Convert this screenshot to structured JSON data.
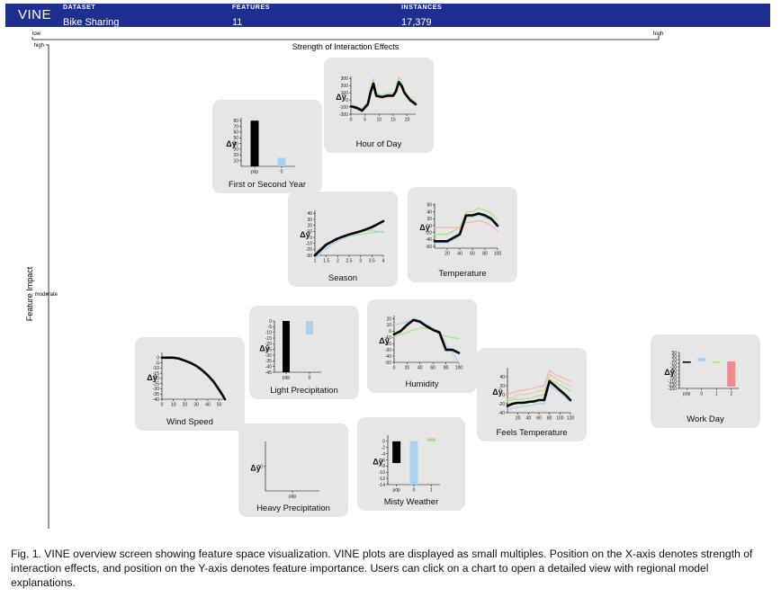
{
  "header": {
    "app_name": "VINE",
    "dataset_label": "DATASET",
    "dataset_value": "Bike Sharing",
    "features_label": "FEATURES",
    "features_value": "11",
    "instances_label": "INSTANCES",
    "instances_value": "17,379"
  },
  "x_axis": {
    "title": "Strength of Interaction Effects",
    "low_label": "low",
    "high_label": "high"
  },
  "y_axis": {
    "title": "Feature Impact",
    "high_label": "high",
    "moderate_label": "moderate"
  },
  "caption": "Fig. 1. VINE overview screen showing feature space visualization. VINE plots are displayed as small multiples. Position on the X-axis denotes strength of interaction effects, and position on the Y-axis denotes feature importance. Users can click on a chart to open a detailed view with regional model explanations.",
  "colors": {
    "header_bg": "#1f2f8f",
    "card_bg": "#e6e6e5",
    "pdp": "#000000",
    "cluster_green": "#a8e08a",
    "cluster_blue": "#a9d2ee",
    "cluster_pink": "#f6b1b6",
    "cluster_red": "#f28a92",
    "cluster_tan": "#e9c8a8"
  },
  "delta_y_label": "Δŷ",
  "chart_data": [
    {
      "id": "hour",
      "title": "Hour of Day",
      "type": "line",
      "x": [
        0,
        2,
        4,
        6,
        7,
        8,
        9,
        11,
        13,
        15,
        16,
        17,
        18,
        19,
        21,
        23
      ],
      "xticks": [
        0,
        5,
        10,
        15,
        20
      ],
      "xlim": [
        0,
        23
      ],
      "ylim": [
        -200,
        330
      ],
      "yticks": [
        -200,
        -100,
        0,
        100,
        200,
        300
      ],
      "series": [
        {
          "role": "pdp",
          "values": [
            -90,
            -110,
            -150,
            -60,
            110,
            230,
            60,
            40,
            60,
            60,
            120,
            250,
            200,
            100,
            0,
            -60
          ]
        },
        {
          "role": "green",
          "values": [
            -70,
            -90,
            -130,
            -40,
            150,
            300,
            90,
            70,
            90,
            90,
            170,
            320,
            250,
            130,
            20,
            -40
          ]
        },
        {
          "role": "pink",
          "values": [
            -100,
            -120,
            -160,
            -80,
            80,
            200,
            40,
            30,
            40,
            50,
            100,
            220,
            170,
            80,
            -10,
            -70
          ]
        },
        {
          "role": "blue",
          "values": [
            -110,
            -130,
            -170,
            -70,
            90,
            190,
            50,
            40,
            50,
            60,
            110,
            230,
            180,
            90,
            -20,
            -80
          ]
        }
      ]
    },
    {
      "id": "year",
      "title": "First or Second Year",
      "type": "bar",
      "categories": [
        "pdp",
        "0"
      ],
      "values": [
        80,
        15
      ],
      "ylim": [
        0,
        85
      ],
      "yticks": [
        10,
        20,
        30,
        40,
        50,
        60,
        70,
        80
      ]
    },
    {
      "id": "season",
      "title": "Season",
      "type": "line",
      "x": [
        1.0,
        1.5,
        2.0,
        2.5,
        3.0,
        3.5,
        4.0
      ],
      "xticks": [
        1.0,
        1.5,
        2.0,
        2.5,
        3.0,
        3.5,
        4.0
      ],
      "xlim": [
        1.0,
        4.0
      ],
      "ylim": [
        -30,
        45
      ],
      "yticks": [
        -30,
        -20,
        -10,
        0,
        10,
        20,
        30,
        40
      ],
      "series": [
        {
          "role": "pdp",
          "values": [
            -30,
            -12,
            -2,
            5,
            10,
            17,
            27
          ]
        },
        {
          "role": "green",
          "values": [
            -25,
            -10,
            -2,
            2,
            5,
            8,
            10
          ]
        },
        {
          "role": "blue",
          "values": [
            -35,
            -18,
            -6,
            2,
            10,
            12,
            8
          ]
        }
      ]
    },
    {
      "id": "temperature",
      "title": "Temperature",
      "type": "line",
      "x": [
        0,
        10,
        20,
        30,
        40,
        50,
        60,
        70,
        80,
        90,
        100
      ],
      "xticks": [
        20,
        40,
        60,
        80,
        100
      ],
      "xlim": [
        0,
        100
      ],
      "ylim": [
        -65,
        65
      ],
      "yticks": [
        -60,
        -40,
        -20,
        0,
        20,
        40,
        60
      ],
      "series": [
        {
          "role": "pdp",
          "values": [
            -45,
            -45,
            -45,
            -35,
            -25,
            30,
            30,
            35,
            30,
            20,
            0
          ]
        },
        {
          "role": "green",
          "values": [
            -25,
            -25,
            -25,
            -15,
            -5,
            40,
            40,
            50,
            45,
            35,
            15
          ]
        },
        {
          "role": "pink",
          "values": [
            -5,
            -5,
            -5,
            -5,
            -5,
            10,
            10,
            15,
            10,
            0,
            -15
          ]
        },
        {
          "role": "blue",
          "values": [
            -50,
            -50,
            -50,
            -40,
            -30,
            25,
            25,
            30,
            25,
            15,
            -5
          ]
        }
      ]
    },
    {
      "id": "wind",
      "title": "Wind Speed",
      "type": "line",
      "x": [
        0,
        5,
        10,
        15,
        20,
        25,
        30,
        35,
        40,
        45,
        50,
        55
      ],
      "xticks": [
        0,
        10,
        20,
        30,
        40,
        50
      ],
      "xlim": [
        0,
        55
      ],
      "ylim": [
        -40,
        5
      ],
      "yticks": [
        0,
        -5,
        -10,
        -15,
        -20,
        -25,
        -30,
        -35,
        -40
      ],
      "series": [
        {
          "role": "pdp",
          "values": [
            0,
            0,
            0,
            -1,
            -3,
            -5,
            -8,
            -12,
            -17,
            -23,
            -31,
            -40
          ]
        }
      ]
    },
    {
      "id": "light",
      "title": "Light Precipitation",
      "type": "bar",
      "categories": [
        "pdp",
        "0"
      ],
      "values": [
        -45,
        -12
      ],
      "ylim": [
        -45,
        0
      ],
      "yticks": [
        0,
        -5,
        -10,
        -15,
        -20,
        -25,
        -30,
        -35,
        -40,
        -45
      ]
    },
    {
      "id": "humidity",
      "title": "Humidity",
      "type": "line",
      "x": [
        0,
        10,
        20,
        30,
        40,
        50,
        60,
        70,
        80,
        90,
        100
      ],
      "xticks": [
        0,
        20,
        40,
        60,
        80,
        100
      ],
      "xlim": [
        0,
        100
      ],
      "ylim": [
        -50,
        25
      ],
      "yticks": [
        -50,
        -40,
        -30,
        -20,
        -10,
        0,
        10,
        20
      ],
      "series": [
        {
          "role": "pdp",
          "values": [
            -5,
            0,
            10,
            18,
            15,
            8,
            2,
            -2,
            -30,
            -30,
            -35
          ]
        },
        {
          "role": "green",
          "values": [
            -10,
            -5,
            -2,
            2,
            5,
            5,
            2,
            -5,
            -8,
            -10,
            -12
          ]
        },
        {
          "role": "blue",
          "values": [
            10,
            12,
            15,
            20,
            18,
            10,
            5,
            0,
            -20,
            -35,
            -50
          ]
        }
      ]
    },
    {
      "id": "feels",
      "title": "Feels Temperature",
      "type": "line",
      "x": [
        0,
        10,
        20,
        30,
        40,
        50,
        60,
        70,
        80,
        90,
        100,
        110,
        120
      ],
      "xticks": [
        20,
        40,
        60,
        80,
        100,
        120
      ],
      "xlim": [
        0,
        120
      ],
      "ylim": [
        -40,
        60
      ],
      "yticks": [
        -40,
        -20,
        0,
        20,
        40
      ],
      "series": [
        {
          "role": "pdp",
          "values": [
            -25,
            -20,
            -18,
            -18,
            -16,
            -15,
            -12,
            -12,
            30,
            20,
            10,
            0,
            -12
          ]
        },
        {
          "role": "pink",
          "values": [
            0,
            5,
            8,
            10,
            12,
            15,
            18,
            20,
            55,
            45,
            40,
            35,
            30
          ]
        },
        {
          "role": "tan",
          "values": [
            -10,
            -5,
            0,
            0,
            2,
            5,
            8,
            10,
            45,
            38,
            30,
            25,
            20
          ]
        },
        {
          "role": "green",
          "values": [
            -15,
            -10,
            -10,
            -10,
            -8,
            -5,
            -2,
            0,
            35,
            28,
            22,
            15,
            8
          ]
        },
        {
          "role": "blue",
          "values": [
            -35,
            -30,
            -28,
            -26,
            -25,
            -22,
            -20,
            -20,
            22,
            12,
            5,
            -5,
            -15
          ]
        }
      ]
    },
    {
      "id": "workday",
      "title": "Work Day",
      "type": "bar",
      "categories": [
        "pdp",
        "0",
        "1",
        "2"
      ],
      "values": [
        -8,
        20,
        -2,
        -140
      ],
      "ylim": [
        -150,
        50
      ],
      "yticks": [
        50,
        30,
        10,
        -10,
        -30,
        -50,
        -70,
        -90,
        -110,
        -130,
        -150
      ]
    },
    {
      "id": "heavy",
      "title": "Heavy Precipitation",
      "type": "bar",
      "categories": [
        "pdp"
      ],
      "values": [
        0
      ],
      "ylim": [
        -1,
        1
      ],
      "yticks": [
        0
      ]
    },
    {
      "id": "misty",
      "title": "Misty Weather",
      "type": "bar",
      "categories": [
        "pdp",
        "0",
        "1"
      ],
      "values": [
        -7,
        -14,
        1
      ],
      "ylim": [
        -14,
        2
      ],
      "yticks": [
        0,
        -2,
        -4,
        -6,
        -8,
        -10,
        -12,
        -14
      ]
    }
  ]
}
